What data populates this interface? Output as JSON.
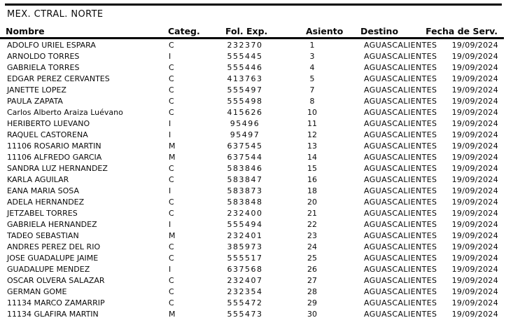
{
  "report": {
    "title": "MEX. CTRAL. NORTE",
    "columns": {
      "nombre": "Nombre",
      "categ": "Categ.",
      "fol": "Fol. Exp.",
      "asiento": "Asiento",
      "destino": "Destino",
      "fecha": "Fecha de Serv."
    },
    "rows": [
      {
        "nombre": "ADOLFO URIEL ESPARA",
        "categ": "C",
        "fol": "232370",
        "asiento": "1",
        "destino": "AGUASCALIENTES",
        "fecha": "19/09/2024"
      },
      {
        "nombre": "ARNOLDO TORRES",
        "categ": "I",
        "fol": "555445",
        "asiento": "3",
        "destino": "AGUASCALIENTES",
        "fecha": "19/09/2024"
      },
      {
        "nombre": "GABRIELA TORRES",
        "categ": "C",
        "fol": "555446",
        "asiento": "4",
        "destino": "AGUASCALIENTES",
        "fecha": "19/09/2024"
      },
      {
        "nombre": "EDGAR PEREZ CERVANTES",
        "categ": "C",
        "fol": "413763",
        "asiento": "5",
        "destino": "AGUASCALIENTES",
        "fecha": "19/09/2024"
      },
      {
        "nombre": "JANETTE LOPEZ",
        "categ": "C",
        "fol": "555497",
        "asiento": "7",
        "destino": "AGUASCALIENTES",
        "fecha": "19/09/2024"
      },
      {
        "nombre": "PAULA ZAPATA",
        "categ": "C",
        "fol": "555498",
        "asiento": "8",
        "destino": "AGUASCALIENTES",
        "fecha": "19/09/2024"
      },
      {
        "nombre": "Carlos Alberto Araiza Luévano",
        "categ": "C",
        "fol": "415626",
        "asiento": "10",
        "destino": "AGUASCALIENTES",
        "fecha": "19/09/2024"
      },
      {
        "nombre": "HERIBERTO LUEVANO",
        "categ": "I",
        "fol": "95496",
        "asiento": "11",
        "destino": "AGUASCALIENTES",
        "fecha": "19/09/2024"
      },
      {
        "nombre": "RAQUEL CASTORENA",
        "categ": "I",
        "fol": "95497",
        "asiento": "12",
        "destino": "AGUASCALIENTES",
        "fecha": "19/09/2024"
      },
      {
        "nombre": "11106 ROSARIO MARTIN",
        "categ": "M",
        "fol": "637545",
        "asiento": "13",
        "destino": "AGUASCALIENTES",
        "fecha": "19/09/2024"
      },
      {
        "nombre": "11106 ALFREDO GARCIA",
        "categ": "M",
        "fol": "637544",
        "asiento": "14",
        "destino": "AGUASCALIENTES",
        "fecha": "19/09/2024"
      },
      {
        "nombre": "SANDRA LUZ HERNANDEZ",
        "categ": "C",
        "fol": "583846",
        "asiento": "15",
        "destino": "AGUASCALIENTES",
        "fecha": "19/09/2024"
      },
      {
        "nombre": "KARLA AGUILAR",
        "categ": "C",
        "fol": "583847",
        "asiento": "16",
        "destino": "AGUASCALIENTES",
        "fecha": "19/09/2024"
      },
      {
        "nombre": "EANA MARIA SOSA",
        "categ": "I",
        "fol": "583873",
        "asiento": "18",
        "destino": "AGUASCALIENTES",
        "fecha": "19/09/2024"
      },
      {
        "nombre": "ADELA HERNANDEZ",
        "categ": "C",
        "fol": "583848",
        "asiento": "20",
        "destino": "AGUASCALIENTES",
        "fecha": "19/09/2024"
      },
      {
        "nombre": "JETZABEL TORRES",
        "categ": "C",
        "fol": "232400",
        "asiento": "21",
        "destino": "AGUASCALIENTES",
        "fecha": "19/09/2024"
      },
      {
        "nombre": "GABRIELA HERNANDEZ",
        "categ": "I",
        "fol": "555494",
        "asiento": "22",
        "destino": "AGUASCALIENTES",
        "fecha": "19/09/2024"
      },
      {
        "nombre": "TADEO SEBASTIAN",
        "categ": "M",
        "fol": "232401",
        "asiento": "23",
        "destino": "AGUASCALIENTES",
        "fecha": "19/09/2024"
      },
      {
        "nombre": "ANDRES PEREZ DEL RIO",
        "categ": "C",
        "fol": "385973",
        "asiento": "24",
        "destino": "AGUASCALIENTES",
        "fecha": "19/09/2024"
      },
      {
        "nombre": "JOSE GUADALUPE JAIME",
        "categ": "C",
        "fol": "555517",
        "asiento": "25",
        "destino": "AGUASCALIENTES",
        "fecha": "19/09/2024"
      },
      {
        "nombre": "GUADALUPE MENDEZ",
        "categ": "I",
        "fol": "637568",
        "asiento": "26",
        "destino": "AGUASCALIENTES",
        "fecha": "19/09/2024"
      },
      {
        "nombre": "OSCAR OLVERA SALAZAR",
        "categ": "C",
        "fol": "232407",
        "asiento": "27",
        "destino": "AGUASCALIENTES",
        "fecha": "19/09/2024"
      },
      {
        "nombre": "GERMAN GOME",
        "categ": "C",
        "fol": "232354",
        "asiento": "28",
        "destino": "AGUASCALIENTES",
        "fecha": "19/09/2024"
      },
      {
        "nombre": "11134 MARCO ZAMARRIP",
        "categ": "C",
        "fol": "555472",
        "asiento": "29",
        "destino": "AGUASCALIENTES",
        "fecha": "19/09/2024"
      },
      {
        "nombre": "11134 GLAFIRA MARTIN",
        "categ": "M",
        "fol": "555473",
        "asiento": "30",
        "destino": "AGUASCALIENTES",
        "fecha": "19/09/2024"
      }
    ]
  }
}
